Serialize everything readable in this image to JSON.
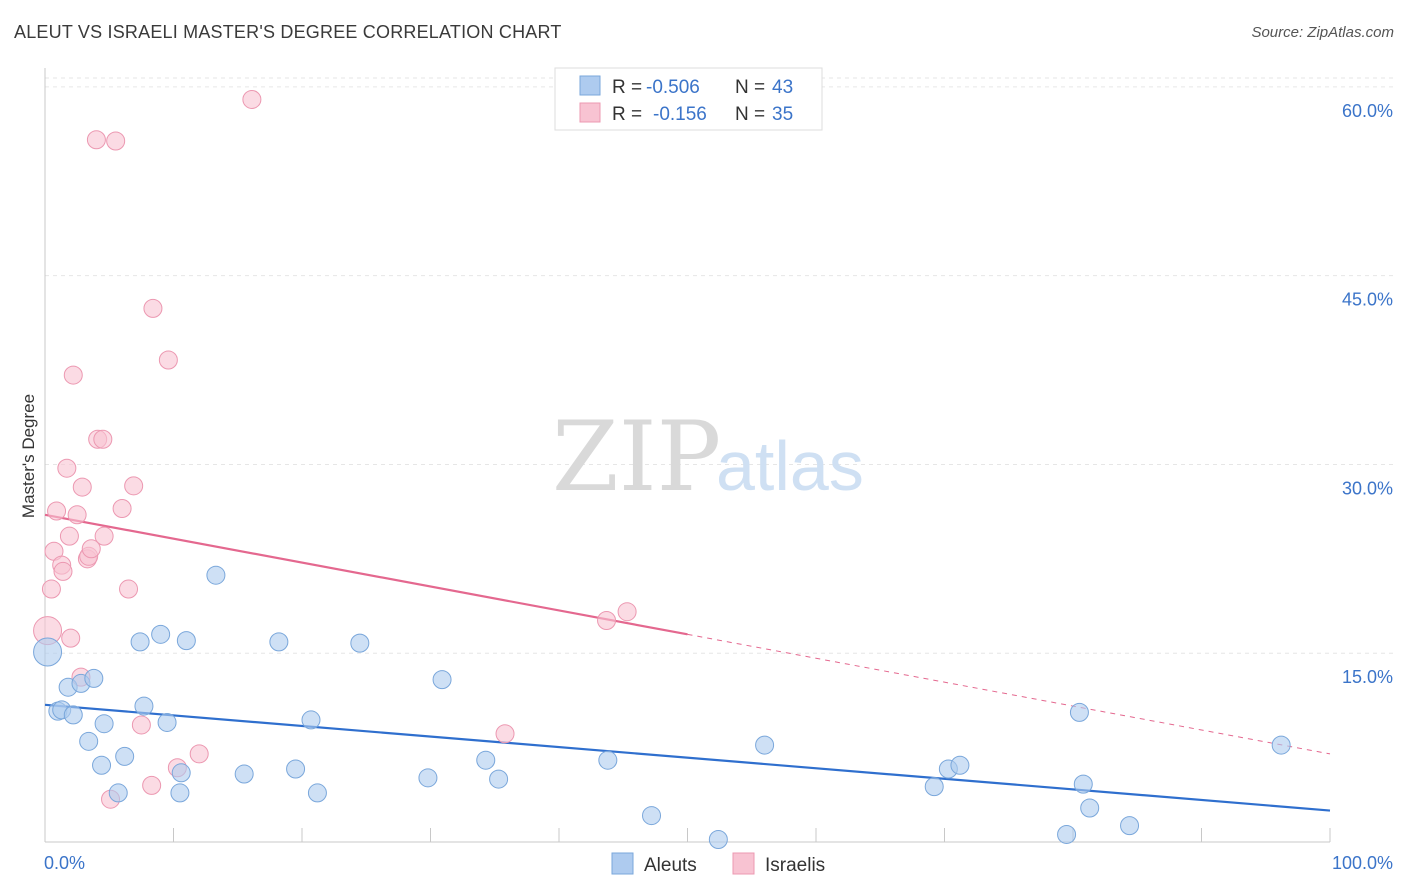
{
  "title": "ALEUT VS ISRAELI MASTER'S DEGREE CORRELATION CHART",
  "source": "Source: ZipAtlas.com",
  "watermark": {
    "zip": "ZIP",
    "atlas": "atlas"
  },
  "colors": {
    "aleut_fill": "#aecbef",
    "aleut_stroke": "#7aa7db",
    "aleut_line": "#2f6fce",
    "israeli_fill": "#f8c3d2",
    "israeli_stroke": "#ec98b1",
    "israeli_line": "#e4688f",
    "tick_label": "#3b74c9",
    "grid": "#e6e6e6"
  },
  "legend": {
    "rows": [
      {
        "r_label": "R =",
        "r_value": "-0.506",
        "n_label": "N =",
        "n_value": "43"
      },
      {
        "r_label": "R =",
        "r_value": "-0.156",
        "n_label": "N =",
        "n_value": "35"
      }
    ]
  },
  "chart_data": {
    "type": "scatter",
    "title": "ALEUT VS ISRAELI MASTER'S DEGREE CORRELATION CHART",
    "xlabel": "",
    "ylabel": "Master's Degree",
    "xlim": [
      0,
      100
    ],
    "ylim": [
      0,
      61.5
    ],
    "x_tick_labels": [
      "0.0%",
      "100.0%"
    ],
    "y_ticks": [
      15,
      30,
      45,
      60
    ],
    "y_tick_labels": [
      "15.0%",
      "30.0%",
      "45.0%",
      "60.0%"
    ],
    "grid": true,
    "legend_position": "top-center",
    "series": [
      {
        "name": "Aleuts",
        "r": -0.506,
        "n": 43,
        "trend": {
          "x0": 0,
          "y0": 10.9,
          "x1": 100,
          "y1": 2.5
        },
        "points": [
          [
            0.2,
            15.1
          ],
          [
            1.0,
            10.4
          ],
          [
            1.3,
            10.5
          ],
          [
            1.8,
            12.3
          ],
          [
            2.2,
            10.1
          ],
          [
            2.8,
            12.6
          ],
          [
            3.4,
            8.0
          ],
          [
            3.8,
            13.0
          ],
          [
            4.4,
            6.1
          ],
          [
            4.6,
            9.4
          ],
          [
            5.7,
            3.9
          ],
          [
            6.2,
            6.8
          ],
          [
            7.4,
            15.9
          ],
          [
            7.7,
            10.8
          ],
          [
            9.0,
            16.5
          ],
          [
            9.5,
            9.5
          ],
          [
            10.5,
            3.9
          ],
          [
            10.6,
            5.5
          ],
          [
            11.0,
            16.0
          ],
          [
            13.3,
            21.2
          ],
          [
            15.5,
            5.4
          ],
          [
            18.2,
            15.9
          ],
          [
            19.5,
            5.8
          ],
          [
            20.7,
            9.7
          ],
          [
            21.2,
            3.9
          ],
          [
            24.5,
            15.8
          ],
          [
            29.8,
            5.1
          ],
          [
            30.9,
            12.9
          ],
          [
            34.3,
            6.5
          ],
          [
            35.3,
            5.0
          ],
          [
            43.8,
            6.5
          ],
          [
            47.2,
            2.1
          ],
          [
            52.4,
            0.2
          ],
          [
            56.0,
            7.7
          ],
          [
            69.2,
            4.4
          ],
          [
            70.3,
            5.8
          ],
          [
            71.2,
            6.1
          ],
          [
            79.5,
            0.6
          ],
          [
            80.5,
            10.3
          ],
          [
            80.8,
            4.6
          ],
          [
            81.3,
            2.7
          ],
          [
            84.4,
            1.3
          ],
          [
            96.2,
            7.7
          ]
        ]
      },
      {
        "name": "Israelis",
        "r": -0.156,
        "n": 35,
        "trend": {
          "x0": 0,
          "y0": 26.0,
          "x1": 50,
          "y1": 16.5,
          "dash_to_x": 100,
          "dash_to_y": 7.0
        },
        "points": [
          [
            0.2,
            16.8
          ],
          [
            0.5,
            20.1
          ],
          [
            0.7,
            23.1
          ],
          [
            0.9,
            26.3
          ],
          [
            1.3,
            22.0
          ],
          [
            1.4,
            21.5
          ],
          [
            1.9,
            24.3
          ],
          [
            2.0,
            16.2
          ],
          [
            2.2,
            37.1
          ],
          [
            1.7,
            29.7
          ],
          [
            2.5,
            26.0
          ],
          [
            2.8,
            13.1
          ],
          [
            2.9,
            28.2
          ],
          [
            3.3,
            22.5
          ],
          [
            3.4,
            22.7
          ],
          [
            3.6,
            23.3
          ],
          [
            4.0,
            55.8
          ],
          [
            4.1,
            32.0
          ],
          [
            4.5,
            32.0
          ],
          [
            4.6,
            24.3
          ],
          [
            5.1,
            3.4
          ],
          [
            5.5,
            55.7
          ],
          [
            6.0,
            26.5
          ],
          [
            6.5,
            20.1
          ],
          [
            6.9,
            28.3
          ],
          [
            7.5,
            9.3
          ],
          [
            8.3,
            4.5
          ],
          [
            8.4,
            42.4
          ],
          [
            9.6,
            38.3
          ],
          [
            10.3,
            5.9
          ],
          [
            12.0,
            7.0
          ],
          [
            16.1,
            59.0
          ],
          [
            35.8,
            8.6
          ],
          [
            43.7,
            17.6
          ],
          [
            45.3,
            18.3
          ]
        ]
      }
    ]
  }
}
